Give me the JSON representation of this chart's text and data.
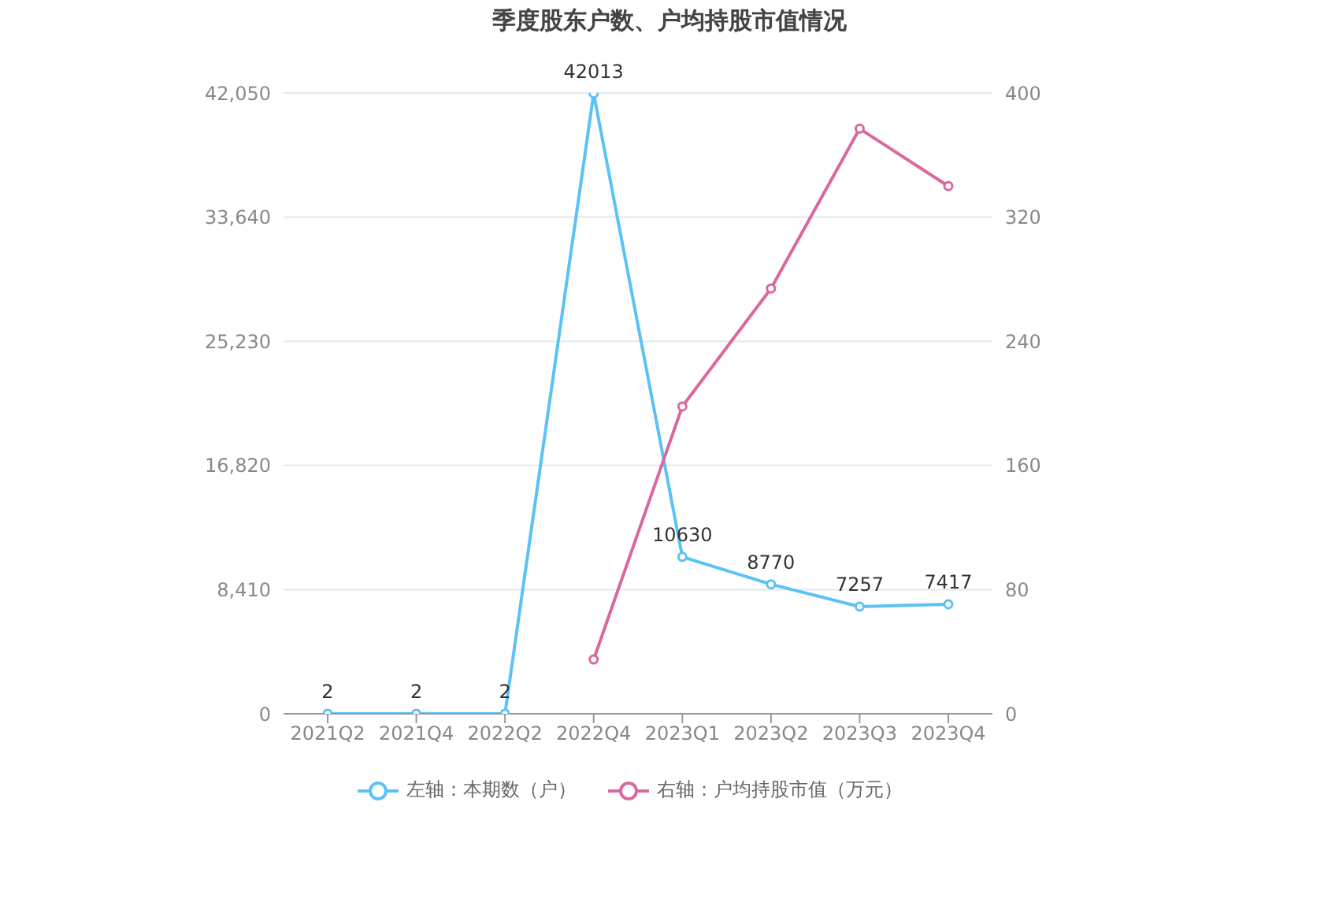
{
  "chart_data": {
    "type": "line",
    "title": "季度股东户数、户均持股市值情况",
    "categories": [
      "2021Q2",
      "2021Q4",
      "2022Q2",
      "2022Q4",
      "2023Q1",
      "2023Q2",
      "2023Q3",
      "2023Q4"
    ],
    "series": [
      {
        "name": "左轴：本期数（户）",
        "color": "#5bc2f5",
        "values": [
          2,
          2,
          2,
          42013,
          10630,
          8770,
          7257,
          7417
        ],
        "value_labels": [
          "2",
          "2",
          "2",
          "42013",
          "10630",
          "8770",
          "7257",
          "7417"
        ]
      },
      {
        "name": "右轴：户均持股市值（万元）",
        "color": "#d9689f",
        "axis": "y2",
        "values": [
          null,
          null,
          null,
          35,
          198,
          274,
          377,
          340
        ]
      }
    ],
    "ylim": [
      0,
      42050
    ],
    "yticks": [
      0,
      {
        "value": 8410,
        "label": "8,410"
      },
      {
        "value": 16820,
        "label": "16,820"
      },
      {
        "value": 25230,
        "label": "25,230"
      },
      {
        "value": 33640,
        "label": "33,640"
      },
      {
        "value": 42050,
        "label": "42,050"
      }
    ],
    "y2lim": [
      0,
      400
    ],
    "y2ticks": [
      0,
      80,
      160,
      240,
      320,
      400
    ],
    "grid": "y",
    "legend": "bottom",
    "marker": "circle",
    "line_style": "solid"
  }
}
